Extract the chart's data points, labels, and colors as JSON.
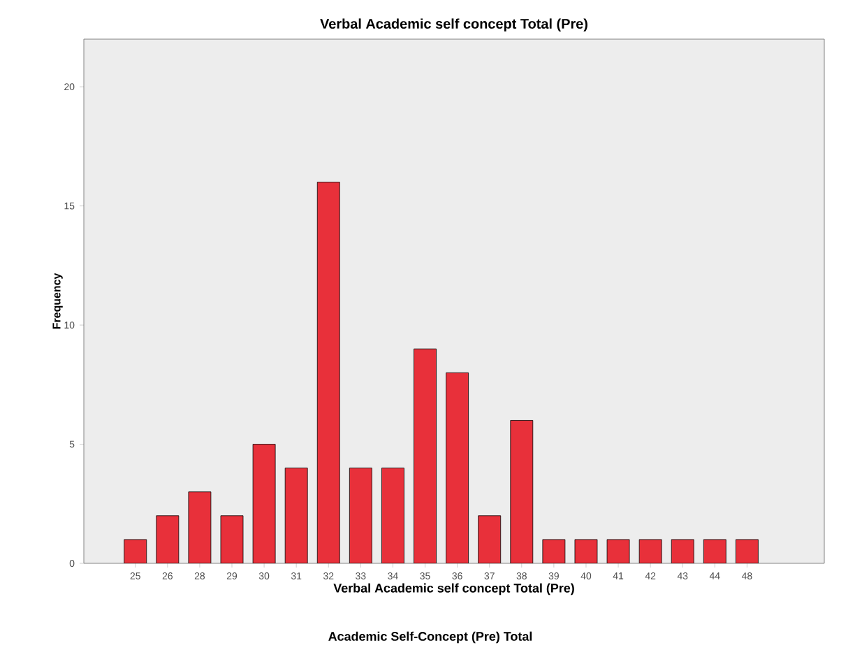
{
  "chart_data": {
    "type": "bar",
    "title": "Verbal Academic self concept Total (Pre)",
    "xlabel": "Verbal Academic self concept Total (Pre)",
    "ylabel": "Frequency",
    "categories": [
      "25",
      "26",
      "28",
      "29",
      "30",
      "31",
      "32",
      "33",
      "34",
      "35",
      "36",
      "37",
      "38",
      "39",
      "40",
      "41",
      "42",
      "43",
      "44",
      "48"
    ],
    "values": [
      1,
      2,
      3,
      2,
      5,
      4,
      16,
      4,
      4,
      9,
      8,
      2,
      6,
      1,
      1,
      1,
      1,
      1,
      1,
      1
    ],
    "color": "#e8303a",
    "ylim": [
      0,
      22
    ],
    "yticks": [
      0,
      5,
      10,
      15,
      20
    ],
    "grid": false,
    "annotations": [
      "Academic Self-Concept (Pre) Total"
    ]
  }
}
